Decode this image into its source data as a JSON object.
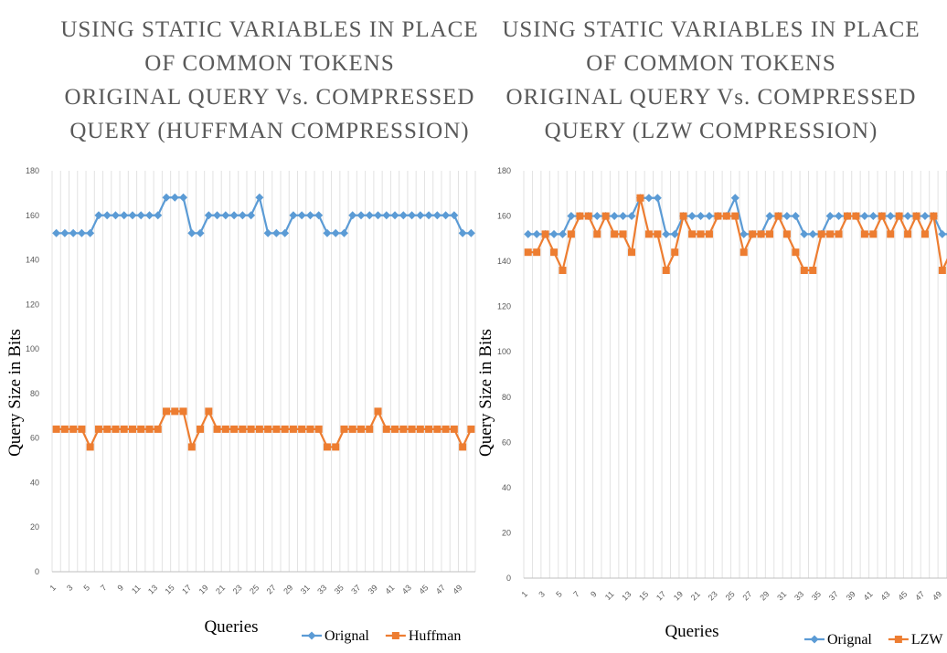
{
  "chart_data": [
    {
      "type": "line",
      "title": [
        "USING STATIC VARIABLES IN PLACE",
        "OF COMMON TOKENS",
        "ORIGINAL QUERY Vs. COMPRESSED",
        "QUERY (HUFFMAN COMPRESSION)"
      ],
      "y_label": "Query Size in Bits",
      "x_label": "Queries",
      "categories": [
        "1",
        null,
        "3",
        null,
        "5",
        null,
        "7",
        null,
        "9",
        null,
        "11",
        null,
        "13",
        null,
        "15",
        null,
        "17",
        null,
        "19",
        null,
        "21",
        null,
        "23",
        null,
        "25",
        null,
        "27",
        null,
        "29",
        null,
        "31",
        null,
        "33",
        null,
        "35",
        null,
        "37",
        null,
        "39",
        null,
        "41",
        null,
        "43",
        null,
        "45",
        null,
        "47",
        null,
        "49",
        null
      ],
      "ylim": [
        0,
        180
      ],
      "yticks": [
        0,
        20,
        40,
        60,
        80,
        100,
        120,
        140,
        160,
        180
      ],
      "grid": true,
      "legend": "bottom-right",
      "series": [
        {
          "name": "Orignal",
          "color": "#5b9bd5",
          "marker": "diamond",
          "values": [
            152,
            152,
            152,
            152,
            152,
            160,
            160,
            160,
            160,
            160,
            160,
            160,
            160,
            168,
            168,
            168,
            152,
            152,
            160,
            160,
            160,
            160,
            160,
            160,
            168,
            152,
            152,
            152,
            160,
            160,
            160,
            160,
            152,
            152,
            152,
            160,
            160,
            160,
            160,
            160,
            160,
            160,
            160,
            160,
            160,
            160,
            160,
            160,
            152,
            152
          ]
        },
        {
          "name": "Huffman",
          "color": "#ed7d31",
          "marker": "square",
          "values": [
            64,
            64,
            64,
            64,
            56,
            64,
            64,
            64,
            64,
            64,
            64,
            64,
            64,
            72,
            72,
            72,
            56,
            64,
            72,
            64,
            64,
            64,
            64,
            64,
            64,
            64,
            64,
            64,
            64,
            64,
            64,
            64,
            56,
            56,
            64,
            64,
            64,
            64,
            72,
            64,
            64,
            64,
            64,
            64,
            64,
            64,
            64,
            64,
            56,
            64
          ]
        }
      ]
    },
    {
      "type": "line",
      "title": [
        "USING STATIC VARIABLES IN PLACE",
        "OF COMMON TOKENS",
        "ORIGINAL QUERY Vs. COMPRESSED",
        "QUERY (LZW COMPRESSION)"
      ],
      "y_label": "Query Size in Bits",
      "x_label": "Queries",
      "categories": [
        "1",
        null,
        "3",
        null,
        "5",
        null,
        "7",
        null,
        "9",
        null,
        "11",
        null,
        "13",
        null,
        "15",
        null,
        "17",
        null,
        "19",
        null,
        "21",
        null,
        "23",
        null,
        "25",
        null,
        "27",
        null,
        "29",
        null,
        "31",
        null,
        "33",
        null,
        "35",
        null,
        "37",
        null,
        "39",
        null,
        "41",
        null,
        "43",
        null,
        "45",
        null,
        "47",
        null,
        "49",
        null
      ],
      "ylim": [
        0,
        180
      ],
      "yticks": [
        0,
        20,
        40,
        60,
        80,
        100,
        120,
        140,
        160,
        180
      ],
      "grid": true,
      "legend": "bottom-right",
      "series": [
        {
          "name": "Orignal",
          "color": "#5b9bd5",
          "marker": "diamond",
          "values": [
            152,
            152,
            152,
            152,
            152,
            160,
            160,
            160,
            160,
            160,
            160,
            160,
            160,
            168,
            168,
            168,
            152,
            152,
            160,
            160,
            160,
            160,
            160,
            160,
            168,
            152,
            152,
            152,
            160,
            160,
            160,
            160,
            152,
            152,
            152,
            160,
            160,
            160,
            160,
            160,
            160,
            160,
            160,
            160,
            160,
            160,
            160,
            160,
            152,
            152
          ]
        },
        {
          "name": "LZW",
          "color": "#ed7d31",
          "marker": "square",
          "values": [
            144,
            144,
            152,
            144,
            136,
            152,
            160,
            160,
            152,
            160,
            152,
            152,
            144,
            168,
            152,
            152,
            136,
            144,
            160,
            152,
            152,
            152,
            160,
            160,
            160,
            144,
            152,
            152,
            152,
            160,
            152,
            144,
            136,
            136,
            152,
            152,
            152,
            160,
            160,
            152,
            152,
            160,
            152,
            160,
            152,
            160,
            152,
            160,
            136,
            144
          ]
        }
      ]
    }
  ]
}
